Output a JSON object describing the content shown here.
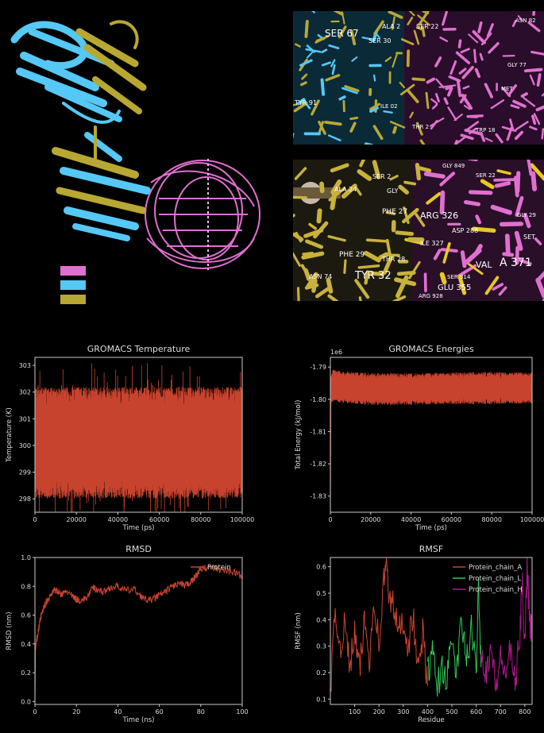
{
  "colors": {
    "background": "#000000",
    "chain_pink": "#e070d0",
    "chain_blue": "#55c8f5",
    "chain_olive": "#b8a832",
    "trace_red": "#c8432e",
    "trace_green": "#2ec85a",
    "trace_magenta": "#b0188c"
  },
  "structure": {
    "legend_swatches": [
      "#e070d0",
      "#55c8f5",
      "#b8a832"
    ],
    "zoom_top_labels": [
      "SER 67",
      "ALA 2",
      "SER 22",
      "TYR 91",
      "ILE 02",
      "GLY 77",
      "ASN 82",
      "SER 30",
      "MET",
      "TRP 18",
      "THR 2"
    ],
    "zoom_bottom_labels": [
      "SER 2",
      "ALA 24",
      "GLY",
      "PHE 27",
      "ARG 326",
      "ILE 327",
      "ASP 288",
      "PHE 29",
      "TYR 32",
      "THR 28",
      "ASN 74",
      "GLU 355",
      "ARG 928",
      "VAL",
      "A 371",
      "SER 314",
      "SER 22",
      "GLY 29",
      "GLY 849",
      "SET"
    ]
  },
  "chart_data": [
    {
      "type": "line",
      "title": "GROMACS Temperature",
      "xlabel": "Time (ps)",
      "ylabel": "Temperature (K)",
      "xlim": [
        0,
        100000
      ],
      "ylim": [
        297.5,
        303.3
      ],
      "xticks": [
        0,
        20000,
        40000,
        60000,
        80000,
        100000
      ],
      "yticks": [
        298,
        299,
        300,
        301,
        302,
        303
      ],
      "series": [
        {
          "color": "#c8432e",
          "mean": 300.1,
          "band_low": 298.2,
          "band_high": 302.0,
          "min": 297.3,
          "max": 303.1
        }
      ]
    },
    {
      "type": "line",
      "title": "GROMACS Energies",
      "xlabel": "Time (ps)",
      "ylabel": "Total Energy (kJ/mol)",
      "scale_label": "1e6",
      "xlim": [
        0,
        100000
      ],
      "ylim": [
        -1.835,
        -1.787
      ],
      "xticks": [
        0,
        20000,
        40000,
        60000,
        80000,
        100000
      ],
      "yticks": [
        -1.79,
        -1.8,
        -1.81,
        -1.82,
        -1.83
      ],
      "series": [
        {
          "color": "#c8432e",
          "x": [
            0,
            300,
            1500,
            5000,
            20000,
            40000,
            60000,
            80000,
            100000
          ],
          "mean": [
            -1.834,
            -1.797,
            -1.7955,
            -1.7962,
            -1.7968,
            -1.7968,
            -1.7966,
            -1.7965,
            -1.7965
          ],
          "band": 0.0045
        }
      ]
    },
    {
      "type": "line",
      "title": "RMSD",
      "xlabel": "Time (ns)",
      "ylabel": "RMSD (nm)",
      "xlim": [
        0,
        100
      ],
      "ylim": [
        -0.02,
        1.0
      ],
      "xticks": [
        0,
        20,
        40,
        60,
        80,
        100
      ],
      "yticks": [
        0.0,
        0.2,
        0.4,
        0.6,
        0.8,
        1.0
      ],
      "legend": "top-right",
      "series": [
        {
          "name": "Protein",
          "color": "#c8432e",
          "x": [
            0,
            0.3,
            1,
            2,
            3,
            5,
            7,
            9,
            11,
            13,
            15,
            18,
            20,
            22,
            25,
            28,
            30,
            33,
            36,
            40,
            44,
            48,
            52,
            55,
            58,
            60,
            63,
            66,
            70,
            72,
            74,
            76,
            78,
            80,
            84,
            88,
            92,
            96,
            100
          ],
          "y": [
            0.0,
            0.38,
            0.44,
            0.52,
            0.6,
            0.68,
            0.72,
            0.78,
            0.76,
            0.74,
            0.77,
            0.73,
            0.71,
            0.7,
            0.72,
            0.79,
            0.78,
            0.76,
            0.79,
            0.8,
            0.77,
            0.78,
            0.72,
            0.7,
            0.72,
            0.74,
            0.76,
            0.8,
            0.82,
            0.8,
            0.82,
            0.84,
            0.88,
            0.92,
            0.93,
            0.92,
            0.91,
            0.9,
            0.87
          ]
        }
      ]
    },
    {
      "type": "line",
      "title": "RMSF",
      "xlabel": "Residue",
      "ylabel": "RMSF (nm)",
      "xlim": [
        0,
        830
      ],
      "ylim": [
        0.08,
        0.635
      ],
      "xticks": [
        100,
        200,
        300,
        400,
        500,
        600,
        700,
        800
      ],
      "yticks": [
        0.1,
        0.2,
        0.3,
        0.4,
        0.5,
        0.6
      ],
      "legend": "top-right",
      "series": [
        {
          "name": "Protein_chain_A",
          "color": "#c8432e",
          "x": [
            1,
            20,
            40,
            60,
            80,
            100,
            120,
            140,
            160,
            180,
            200,
            220,
            230,
            240,
            260,
            280,
            300,
            320,
            340,
            360,
            380,
            400
          ],
          "y": [
            0.15,
            0.42,
            0.3,
            0.38,
            0.22,
            0.35,
            0.2,
            0.4,
            0.25,
            0.48,
            0.3,
            0.55,
            0.61,
            0.5,
            0.45,
            0.35,
            0.4,
            0.3,
            0.42,
            0.2,
            0.35,
            0.15
          ]
        },
        {
          "name": "Protein_chain_L",
          "color": "#2ec85a",
          "x": [
            400,
            420,
            440,
            460,
            480,
            500,
            520,
            540,
            560,
            580,
            600,
            610,
            620
          ],
          "y": [
            0.2,
            0.27,
            0.15,
            0.22,
            0.18,
            0.32,
            0.2,
            0.4,
            0.24,
            0.36,
            0.2,
            0.56,
            0.22
          ]
        },
        {
          "name": "Protein_chain_H",
          "color": "#b0188c",
          "x": [
            620,
            640,
            660,
            680,
            700,
            720,
            740,
            760,
            780,
            790,
            800,
            810,
            820,
            830
          ],
          "y": [
            0.28,
            0.2,
            0.3,
            0.15,
            0.25,
            0.2,
            0.28,
            0.15,
            0.35,
            0.55,
            0.3,
            0.62,
            0.4,
            0.35
          ]
        }
      ]
    }
  ]
}
